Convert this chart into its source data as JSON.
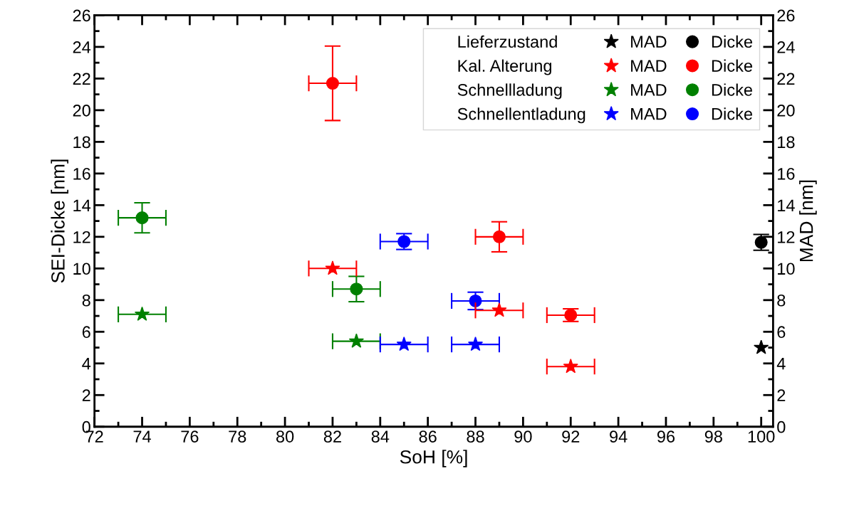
{
  "chart_data": {
    "type": "scatter",
    "xlabel": "SoH [%]",
    "ylabel": "SEI-Dicke [nm]",
    "y2label": "MAD [nm]",
    "xlim": [
      72,
      100.5
    ],
    "xticks": [
      72,
      74,
      76,
      78,
      80,
      82,
      84,
      86,
      88,
      90,
      92,
      94,
      96,
      98,
      100
    ],
    "ylim": [
      0,
      26
    ],
    "yticks": [
      0,
      2,
      4,
      6,
      8,
      10,
      12,
      14,
      16,
      18,
      20,
      22,
      24,
      26
    ],
    "y2lim": [
      0,
      26
    ],
    "y2ticks": [
      0,
      2,
      4,
      6,
      8,
      10,
      12,
      14,
      16,
      18,
      20,
      22,
      24,
      26
    ],
    "grid": false,
    "legend": "top right",
    "annotations": [
      "Lieferzustand",
      "Kal. Alterung",
      "Schnellladung",
      "Schnellentladung"
    ],
    "series": [
      {
        "name": "MAD",
        "color": "#000000",
        "marker": "star",
        "axis": "y2",
        "x": [
          100
        ],
        "values": [
          5.0
        ],
        "xerrors": [
          null
        ]
      },
      {
        "name": "MAD",
        "color": "#ff0000",
        "marker": "star",
        "axis": "y2",
        "x": [
          82,
          89,
          92
        ],
        "values": [
          10.0,
          7.35,
          3.8
        ],
        "xerrors": [
          1,
          1,
          1
        ]
      },
      {
        "name": "MAD",
        "color": "#008000",
        "marker": "star",
        "axis": "y2",
        "x": [
          74,
          83
        ],
        "values": [
          7.1,
          5.4
        ],
        "xerrors": [
          1,
          1
        ]
      },
      {
        "name": "MAD",
        "color": "#0000ff",
        "marker": "star",
        "axis": "y2",
        "x": [
          85,
          88
        ],
        "values": [
          5.2,
          5.2
        ],
        "xerrors": [
          1,
          1
        ]
      },
      {
        "name": "Dicke",
        "color": "#000000",
        "marker": "circle",
        "x": [
          100
        ],
        "values": [
          11.65
        ],
        "errors": [
          0.5
        ],
        "xerrors": [
          null
        ]
      },
      {
        "name": "Dicke",
        "color": "#ff0000",
        "marker": "circle",
        "x": [
          82,
          89,
          92
        ],
        "values": [
          21.7,
          12.0,
          7.05
        ],
        "errors": [
          2.35,
          0.95,
          0.4
        ],
        "xerrors": [
          1,
          1,
          1
        ]
      },
      {
        "name": "Dicke",
        "color": "#008000",
        "marker": "circle",
        "x": [
          74,
          83
        ],
        "values": [
          13.2,
          8.7
        ],
        "errors": [
          0.95,
          0.8
        ],
        "xerrors": [
          1,
          1
        ]
      },
      {
        "name": "Dicke",
        "color": "#0000ff",
        "marker": "circle",
        "x": [
          85,
          88
        ],
        "values": [
          11.7,
          7.95
        ],
        "errors": [
          0.5,
          0.55
        ],
        "xerrors": [
          1,
          1
        ]
      }
    ]
  }
}
